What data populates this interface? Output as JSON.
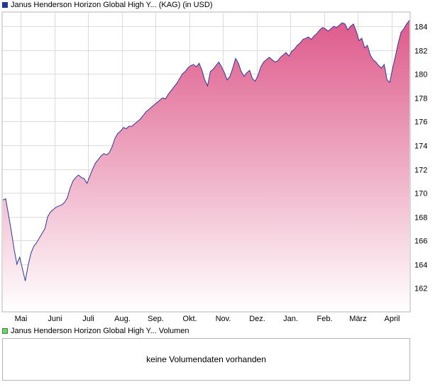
{
  "price_legend": {
    "label": "Janus Henderson Horizon Global High Y... (KAG) (in USD)",
    "color": "#1f3a93"
  },
  "volume_legend": {
    "label": "Janus Henderson Horizon Global High Y... Volumen",
    "color": "#6fd46f"
  },
  "volume_message": "keine Volumendaten vorhanden",
  "chart_data": {
    "type": "area",
    "ylim": [
      160,
      185.2
    ],
    "y_ticks": [
      162,
      164,
      166,
      168,
      170,
      172,
      174,
      176,
      178,
      180,
      182,
      184
    ],
    "x_labels": [
      "Mai",
      "Juni",
      "Juli",
      "Aug.",
      "Sep.",
      "Okt.",
      "Nov.",
      "Dez.",
      "Jan.",
      "Feb.",
      "März",
      "April"
    ],
    "grid": true,
    "line_color": "#2a3a9a",
    "fill_top_color": "#de5a8a",
    "fill_bottom_color": "#ffffff",
    "series": [
      {
        "values": [
          169.4,
          169.5,
          168.2,
          166.8,
          165.3,
          164.0,
          164.6,
          163.6,
          162.6,
          163.9,
          164.9,
          165.5,
          165.8,
          166.2,
          166.6,
          167.0,
          168.0,
          168.4,
          168.6,
          168.8,
          168.9,
          169.0,
          169.2,
          169.6,
          170.4,
          171.0,
          171.3,
          171.5,
          171.3,
          171.2,
          170.8,
          171.4,
          172.0,
          172.5,
          172.8,
          173.1,
          173.3,
          173.2,
          173.4,
          173.9,
          174.6,
          175.0,
          175.2,
          175.5,
          175.4,
          175.6,
          175.6,
          175.8,
          176.0,
          176.2,
          176.5,
          176.8,
          177.0,
          177.2,
          177.4,
          177.6,
          177.8,
          178.0,
          177.9,
          178.3,
          178.6,
          178.9,
          179.2,
          179.6,
          180.0,
          180.2,
          180.5,
          180.7,
          180.8,
          180.6,
          180.9,
          180.3,
          179.5,
          179.0,
          180.2,
          180.4,
          180.7,
          181.0,
          180.6,
          180.1,
          179.5,
          179.8,
          180.5,
          181.3,
          180.9,
          180.2,
          179.8,
          180.1,
          180.3,
          179.6,
          179.4,
          179.9,
          180.6,
          181.0,
          181.2,
          181.4,
          181.2,
          181.0,
          181.1,
          181.4,
          181.6,
          181.8,
          181.5,
          181.9,
          182.1,
          182.4,
          182.6,
          182.9,
          183.0,
          183.1,
          182.9,
          183.2,
          183.4,
          183.7,
          183.9,
          183.8,
          183.6,
          183.8,
          184.0,
          183.9,
          184.1,
          184.3,
          184.2,
          183.7,
          184.0,
          184.2,
          183.6,
          182.8,
          183.0,
          182.2,
          182.4,
          181.6,
          181.2,
          181.0,
          180.7,
          180.5,
          180.8,
          179.5,
          179.3,
          180.5,
          181.5,
          182.6,
          183.5,
          183.8,
          184.2,
          184.5
        ]
      }
    ]
  }
}
